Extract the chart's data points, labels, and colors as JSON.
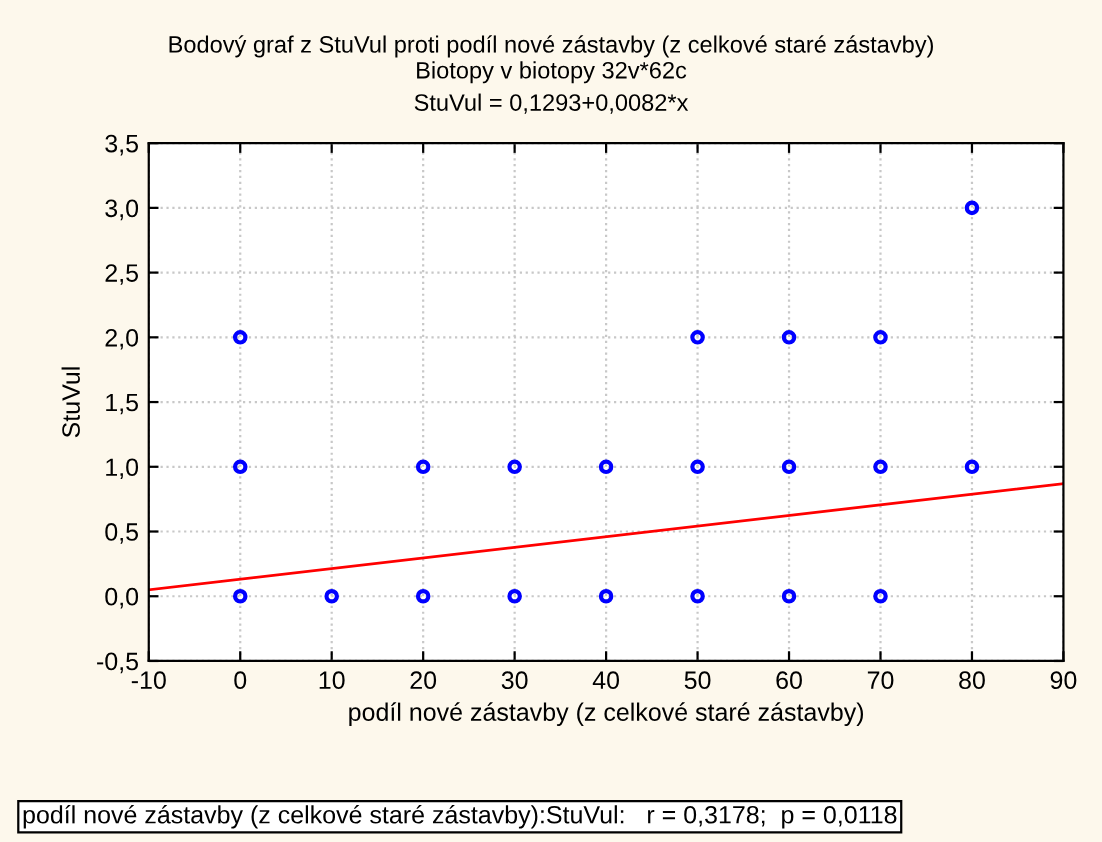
{
  "chart_data": {
    "type": "scatter",
    "title": "Bodový graf z StuVul proti podíl nové zástavby (z celkové staré zástavby)",
    "subtitle": "Biotopy v biotopy 32v*62c\nStuVul = 0,1293+0,0082*x",
    "xlabel": "podíl nové zástavby (z celkové staré zástavby)",
    "ylabel": "StuVul",
    "annotations": [
      "podíl nové zástavby (z celkové staré zástavby):StuVul:   r = 0,3178;  p = 0,0118"
    ],
    "series": [
      {
        "color": "#0000ff",
        "marker": "circle",
        "x": [
          0,
          0,
          0,
          10,
          20,
          20,
          30,
          30,
          40,
          40,
          50,
          50,
          50,
          60,
          60,
          60,
          70,
          70,
          70,
          80,
          80
        ],
        "values": [
          0,
          1,
          2,
          0,
          0,
          1,
          0,
          1,
          0,
          1,
          0,
          1,
          2,
          0,
          1,
          2,
          0,
          1,
          2,
          1,
          3
        ]
      },
      {
        "type": "line",
        "color": "#ff0000",
        "line_style": "solid",
        "x": [
          -10,
          90
        ],
        "values": [
          0.05,
          0.87
        ]
      }
    ],
    "xlim": [
      -10,
      90
    ],
    "xticks": [
      -10,
      0,
      10,
      20,
      30,
      40,
      50,
      60,
      70,
      80,
      90
    ],
    "ylim": [
      -0.5,
      3.5
    ],
    "yticks": [
      {
        "value": -0.5,
        "label": "-0,5"
      },
      {
        "value": 0,
        "label": "0,0"
      },
      {
        "value": 0.5,
        "label": "0,5"
      },
      {
        "value": 1,
        "label": "1,0"
      },
      {
        "value": 1.5,
        "label": "1,5"
      },
      {
        "value": 2,
        "label": "2,0"
      },
      {
        "value": 2.5,
        "label": "2,5"
      },
      {
        "value": 3,
        "label": "3,0"
      },
      {
        "value": 3.5,
        "label": "3,5"
      }
    ],
    "grid": true,
    "legend": false
  }
}
